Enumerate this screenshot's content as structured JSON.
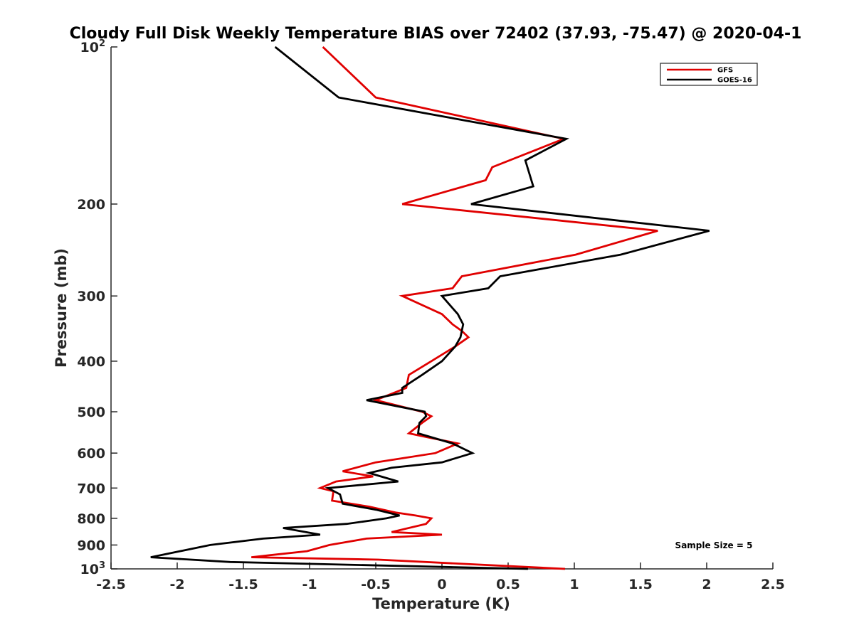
{
  "chart_data": {
    "type": "line",
    "title": "Cloudy Full Disk Weekly Temperature BIAS over 72402 (37.93, -75.47) @ 2020-04-1",
    "xlabel": "Temperature (K)",
    "ylabel": "Pressure (mb)",
    "xlim": [
      -2.5,
      2.5
    ],
    "ylim": [
      1000,
      100
    ],
    "y_scale": "log",
    "y_reversed": true,
    "x_ticks": [
      "-2.5",
      "-2",
      "-1.5",
      "-1",
      "-0.5",
      "0",
      "0.5",
      "1",
      "1.5",
      "2",
      "2.5"
    ],
    "x_tick_values": [
      -2.5,
      -2,
      -1.5,
      -1,
      -0.5,
      0,
      0.5,
      1,
      1.5,
      2,
      2.5
    ],
    "y_ticks": [
      {
        "value": 100,
        "base": "10",
        "sup": "2"
      },
      {
        "value": 200,
        "label": "200"
      },
      {
        "value": 300,
        "label": "300"
      },
      {
        "value": 400,
        "label": "400"
      },
      {
        "value": 500,
        "label": "500"
      },
      {
        "value": 600,
        "label": "600"
      },
      {
        "value": 700,
        "label": "700"
      },
      {
        "value": 800,
        "label": "800"
      },
      {
        "value": 900,
        "label": "900"
      },
      {
        "value": 1000,
        "base": "10",
        "sup": "3"
      }
    ],
    "legend_position": "top-right",
    "grid": false,
    "annotation": "Sample Size = 5",
    "series": [
      {
        "name": "GFS",
        "color": "#e00000",
        "points": [
          [
            -0.9,
            100
          ],
          [
            -0.5,
            125
          ],
          [
            0.92,
            150
          ],
          [
            0.38,
            170
          ],
          [
            0.33,
            180
          ],
          [
            -0.3,
            200
          ],
          [
            1.63,
            225
          ],
          [
            1.01,
            250
          ],
          [
            0.15,
            275
          ],
          [
            0.08,
            290
          ],
          [
            -0.3,
            300
          ],
          [
            0.0,
            325
          ],
          [
            0.08,
            340
          ],
          [
            0.15,
            350
          ],
          [
            0.2,
            360
          ],
          [
            0.1,
            375
          ],
          [
            -0.08,
            400
          ],
          [
            -0.25,
            425
          ],
          [
            -0.27,
            450
          ],
          [
            -0.5,
            475
          ],
          [
            -0.15,
            500
          ],
          [
            -0.08,
            510
          ],
          [
            -0.15,
            525
          ],
          [
            -0.25,
            550
          ],
          [
            -0.1,
            560
          ],
          [
            0.12,
            575
          ],
          [
            -0.05,
            600
          ],
          [
            -0.5,
            625
          ],
          [
            -0.75,
            650
          ],
          [
            -0.52,
            665
          ],
          [
            -0.8,
            680
          ],
          [
            -0.92,
            700
          ],
          [
            -0.82,
            710
          ],
          [
            -0.83,
            740
          ],
          [
            -0.55,
            760
          ],
          [
            -0.35,
            780
          ],
          [
            -0.2,
            790
          ],
          [
            -0.08,
            800
          ],
          [
            -0.12,
            820
          ],
          [
            -0.38,
            850
          ],
          [
            0.0,
            860
          ],
          [
            -0.57,
            875
          ],
          [
            -0.85,
            900
          ],
          [
            -1.02,
            925
          ],
          [
            -1.44,
            950
          ],
          [
            -0.48,
            960
          ],
          [
            0.93,
            1000
          ]
        ]
      },
      {
        "name": "GOES-16",
        "color": "#000000",
        "points": [
          [
            -1.26,
            100
          ],
          [
            -0.78,
            125
          ],
          [
            0.94,
            150
          ],
          [
            0.63,
            165
          ],
          [
            0.69,
            185
          ],
          [
            0.22,
            200
          ],
          [
            2.02,
            225
          ],
          [
            1.35,
            250
          ],
          [
            0.44,
            275
          ],
          [
            0.35,
            290
          ],
          [
            0.0,
            300
          ],
          [
            0.12,
            325
          ],
          [
            0.16,
            340
          ],
          [
            0.15,
            350
          ],
          [
            0.14,
            360
          ],
          [
            0.1,
            375
          ],
          [
            0.0,
            400
          ],
          [
            -0.15,
            425
          ],
          [
            -0.3,
            450
          ],
          [
            -0.3,
            460
          ],
          [
            -0.57,
            475
          ],
          [
            -0.13,
            500
          ],
          [
            -0.12,
            510
          ],
          [
            -0.17,
            525
          ],
          [
            -0.18,
            550
          ],
          [
            0.08,
            575
          ],
          [
            0.23,
            600
          ],
          [
            0.0,
            625
          ],
          [
            -0.38,
            640
          ],
          [
            -0.55,
            655
          ],
          [
            -0.33,
            680
          ],
          [
            -0.86,
            700
          ],
          [
            -0.77,
            720
          ],
          [
            -0.75,
            750
          ],
          [
            -0.5,
            770
          ],
          [
            -0.32,
            790
          ],
          [
            -0.42,
            800
          ],
          [
            -0.72,
            820
          ],
          [
            -1.2,
            835
          ],
          [
            -0.92,
            860
          ],
          [
            -1.35,
            875
          ],
          [
            -1.75,
            900
          ],
          [
            -2.2,
            950
          ],
          [
            -1.6,
            970
          ],
          [
            0.65,
            1000
          ]
        ]
      }
    ]
  }
}
